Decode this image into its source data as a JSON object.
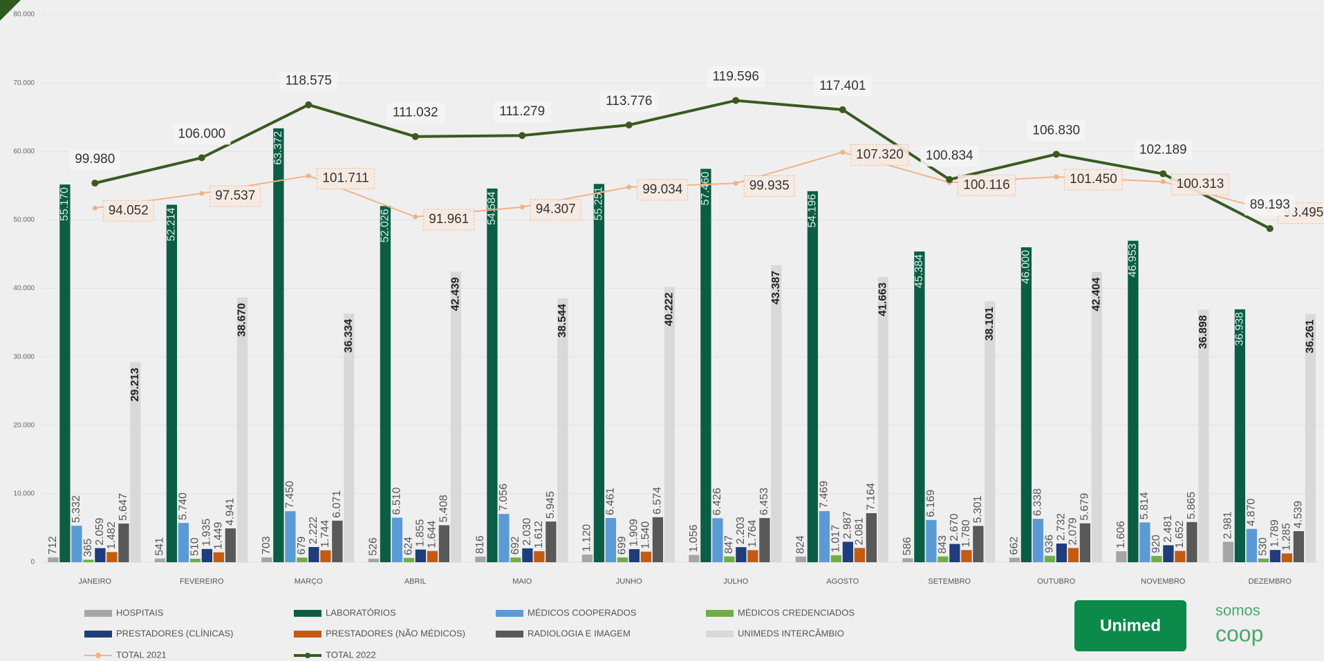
{
  "chart_data": {
    "type": "bar",
    "categories": [
      "JANEIRO",
      "FEVEREIRO",
      "MARÇO",
      "ABRIL",
      "MAIO",
      "JUNHO",
      "JULHO",
      "AGOSTO",
      "SETEMBRO",
      "OUTUBRO",
      "NOVEMBRO",
      "DEZEMBRO"
    ],
    "ylim": [
      0,
      80000
    ],
    "yticks": [
      0,
      {
        "value": 10000,
        "label": "10.000"
      },
      {
        "value": 20000,
        "label": "20.000"
      },
      {
        "value": 30000,
        "label": "30.000"
      },
      {
        "value": 40000,
        "label": "40.000"
      },
      {
        "value": 50000,
        "label": "50.000"
      },
      {
        "value": 60000,
        "label": "60.000"
      },
      {
        "value": 70000,
        "label": "70.000"
      },
      {
        "value": 80000,
        "label": "80.000"
      }
    ],
    "y2lim": [
      10000,
      140000
    ],
    "grid": true,
    "legend": "bottom",
    "series": [
      {
        "name": "HOSPITAIS",
        "color": "#a6a6a6",
        "values": [
          712,
          541,
          703,
          526,
          816,
          1120,
          1056,
          824,
          586,
          662,
          1606,
          2981
        ],
        "value_labels": [
          "712",
          "541",
          "703",
          "526",
          "816",
          "1.120",
          "1.056",
          "824",
          "586",
          "662",
          "1.606",
          "2.981"
        ]
      },
      {
        "name": "LABORATÓRIOS",
        "color": "#0b5e45",
        "values": [
          55170,
          52214,
          63372,
          52026,
          54584,
          55251,
          57460,
          54196,
          45384,
          46000,
          46953,
          36938
        ],
        "value_labels": [
          "55.170",
          "52.214",
          "63.372",
          "52.026",
          "54.584",
          "55.251",
          "57.460",
          "54.196",
          "45.384",
          "46.000",
          "46.953",
          "36.938"
        ]
      },
      {
        "name": "MÉDICOS COOPERADOS",
        "color": "#5b9bd5",
        "values": [
          5332,
          5740,
          7450,
          6510,
          7056,
          6461,
          6426,
          7469,
          6169,
          6338,
          5814,
          4870
        ],
        "value_labels": [
          "5.332",
          "5.740",
          "7.450",
          "6.510",
          "7.056",
          "6.461",
          "6.426",
          "7.469",
          "6.169",
          "6.338",
          "5.814",
          "4.870"
        ]
      },
      {
        "name": "MÉDICOS CREDENCIADOS",
        "color": "#70ad47",
        "values": [
          365,
          510,
          679,
          624,
          692,
          699,
          847,
          1017,
          843,
          936,
          920,
          530
        ],
        "value_labels": [
          "365",
          "510",
          "679",
          "624",
          "692",
          "699",
          "847",
          "1.017",
          "843",
          "936",
          "920",
          "530"
        ]
      },
      {
        "name": "PRESTADORES (CLÍNICAS)",
        "color": "#1f3d7a",
        "values": [
          2059,
          1935,
          2222,
          1855,
          2030,
          1909,
          2203,
          2987,
          2670,
          2732,
          2481,
          1789
        ],
        "value_labels": [
          "2.059",
          "1.935",
          "2.222",
          "1.855",
          "2.030",
          "1.909",
          "2.203",
          "2.987",
          "2.670",
          "2.732",
          "2.481",
          "1.789"
        ]
      },
      {
        "name": "PRESTADORES (NÃO MÉDICOS)",
        "color": "#c55a11",
        "values": [
          1482,
          1449,
          1744,
          1644,
          1612,
          1540,
          1764,
          2081,
          1780,
          2079,
          1652,
          1285
        ],
        "value_labels": [
          "1.482",
          "1.449",
          "1.744",
          "1.644",
          "1.612",
          "1.540",
          "1.764",
          "2.081",
          "1.780",
          "2.079",
          "1.652",
          "1.285"
        ]
      },
      {
        "name": "RADIOLOGIA E IMAGEM",
        "color": "#595959",
        "values": [
          5647,
          4941,
          6071,
          5408,
          5945,
          6574,
          6453,
          7164,
          5301,
          5679,
          5865,
          4539
        ],
        "value_labels": [
          "5.647",
          "4.941",
          "6.071",
          "5.408",
          "5.945",
          "6.574",
          "6.453",
          "7.164",
          "5.301",
          "5.679",
          "5.865",
          "4.539"
        ]
      },
      {
        "name": "UNIMEDS INTERCÂMBIO",
        "color": "#d9d9d9",
        "values": [
          29213,
          38670,
          36334,
          42439,
          38544,
          40222,
          43387,
          41663,
          38101,
          42404,
          36898,
          36261
        ],
        "value_labels": [
          "29.213",
          "38.670",
          "36.334",
          "42.439",
          "38.544",
          "40.222",
          "43.387",
          "41.663",
          "38.101",
          "42.404",
          "36.898",
          "36.261"
        ]
      },
      {
        "name": "TOTAL 2021",
        "color": "#f4b183",
        "type": "line",
        "axis": "y2",
        "values": [
          94052,
          97537,
          101711,
          91961,
          94307,
          99034,
          99935,
          107320,
          100116,
          101450,
          100313,
          93495
        ],
        "value_labels": [
          "94.052",
          "97.537",
          "101.711",
          "91.961",
          "94.307",
          "99.034",
          "99.935",
          "107.320",
          "100.116",
          "101.450",
          "100.313",
          "93.495"
        ]
      },
      {
        "name": "TOTAL 2022",
        "color": "#3a5a1f",
        "type": "line",
        "axis": "y2",
        "values": [
          99980,
          106000,
          118575,
          111032,
          111279,
          113776,
          119596,
          117401,
          100834,
          106830,
          102189,
          89193
        ],
        "value_labels": [
          "99.980",
          "106.000",
          "118.575",
          "111.032",
          "111.279",
          "113.776",
          "119.596",
          "117.401",
          "100.834",
          "106.830",
          "102.189",
          "89.193"
        ]
      }
    ]
  },
  "logos": {
    "unimed": "Unimed",
    "somos": "somos",
    "coop": "coop"
  }
}
